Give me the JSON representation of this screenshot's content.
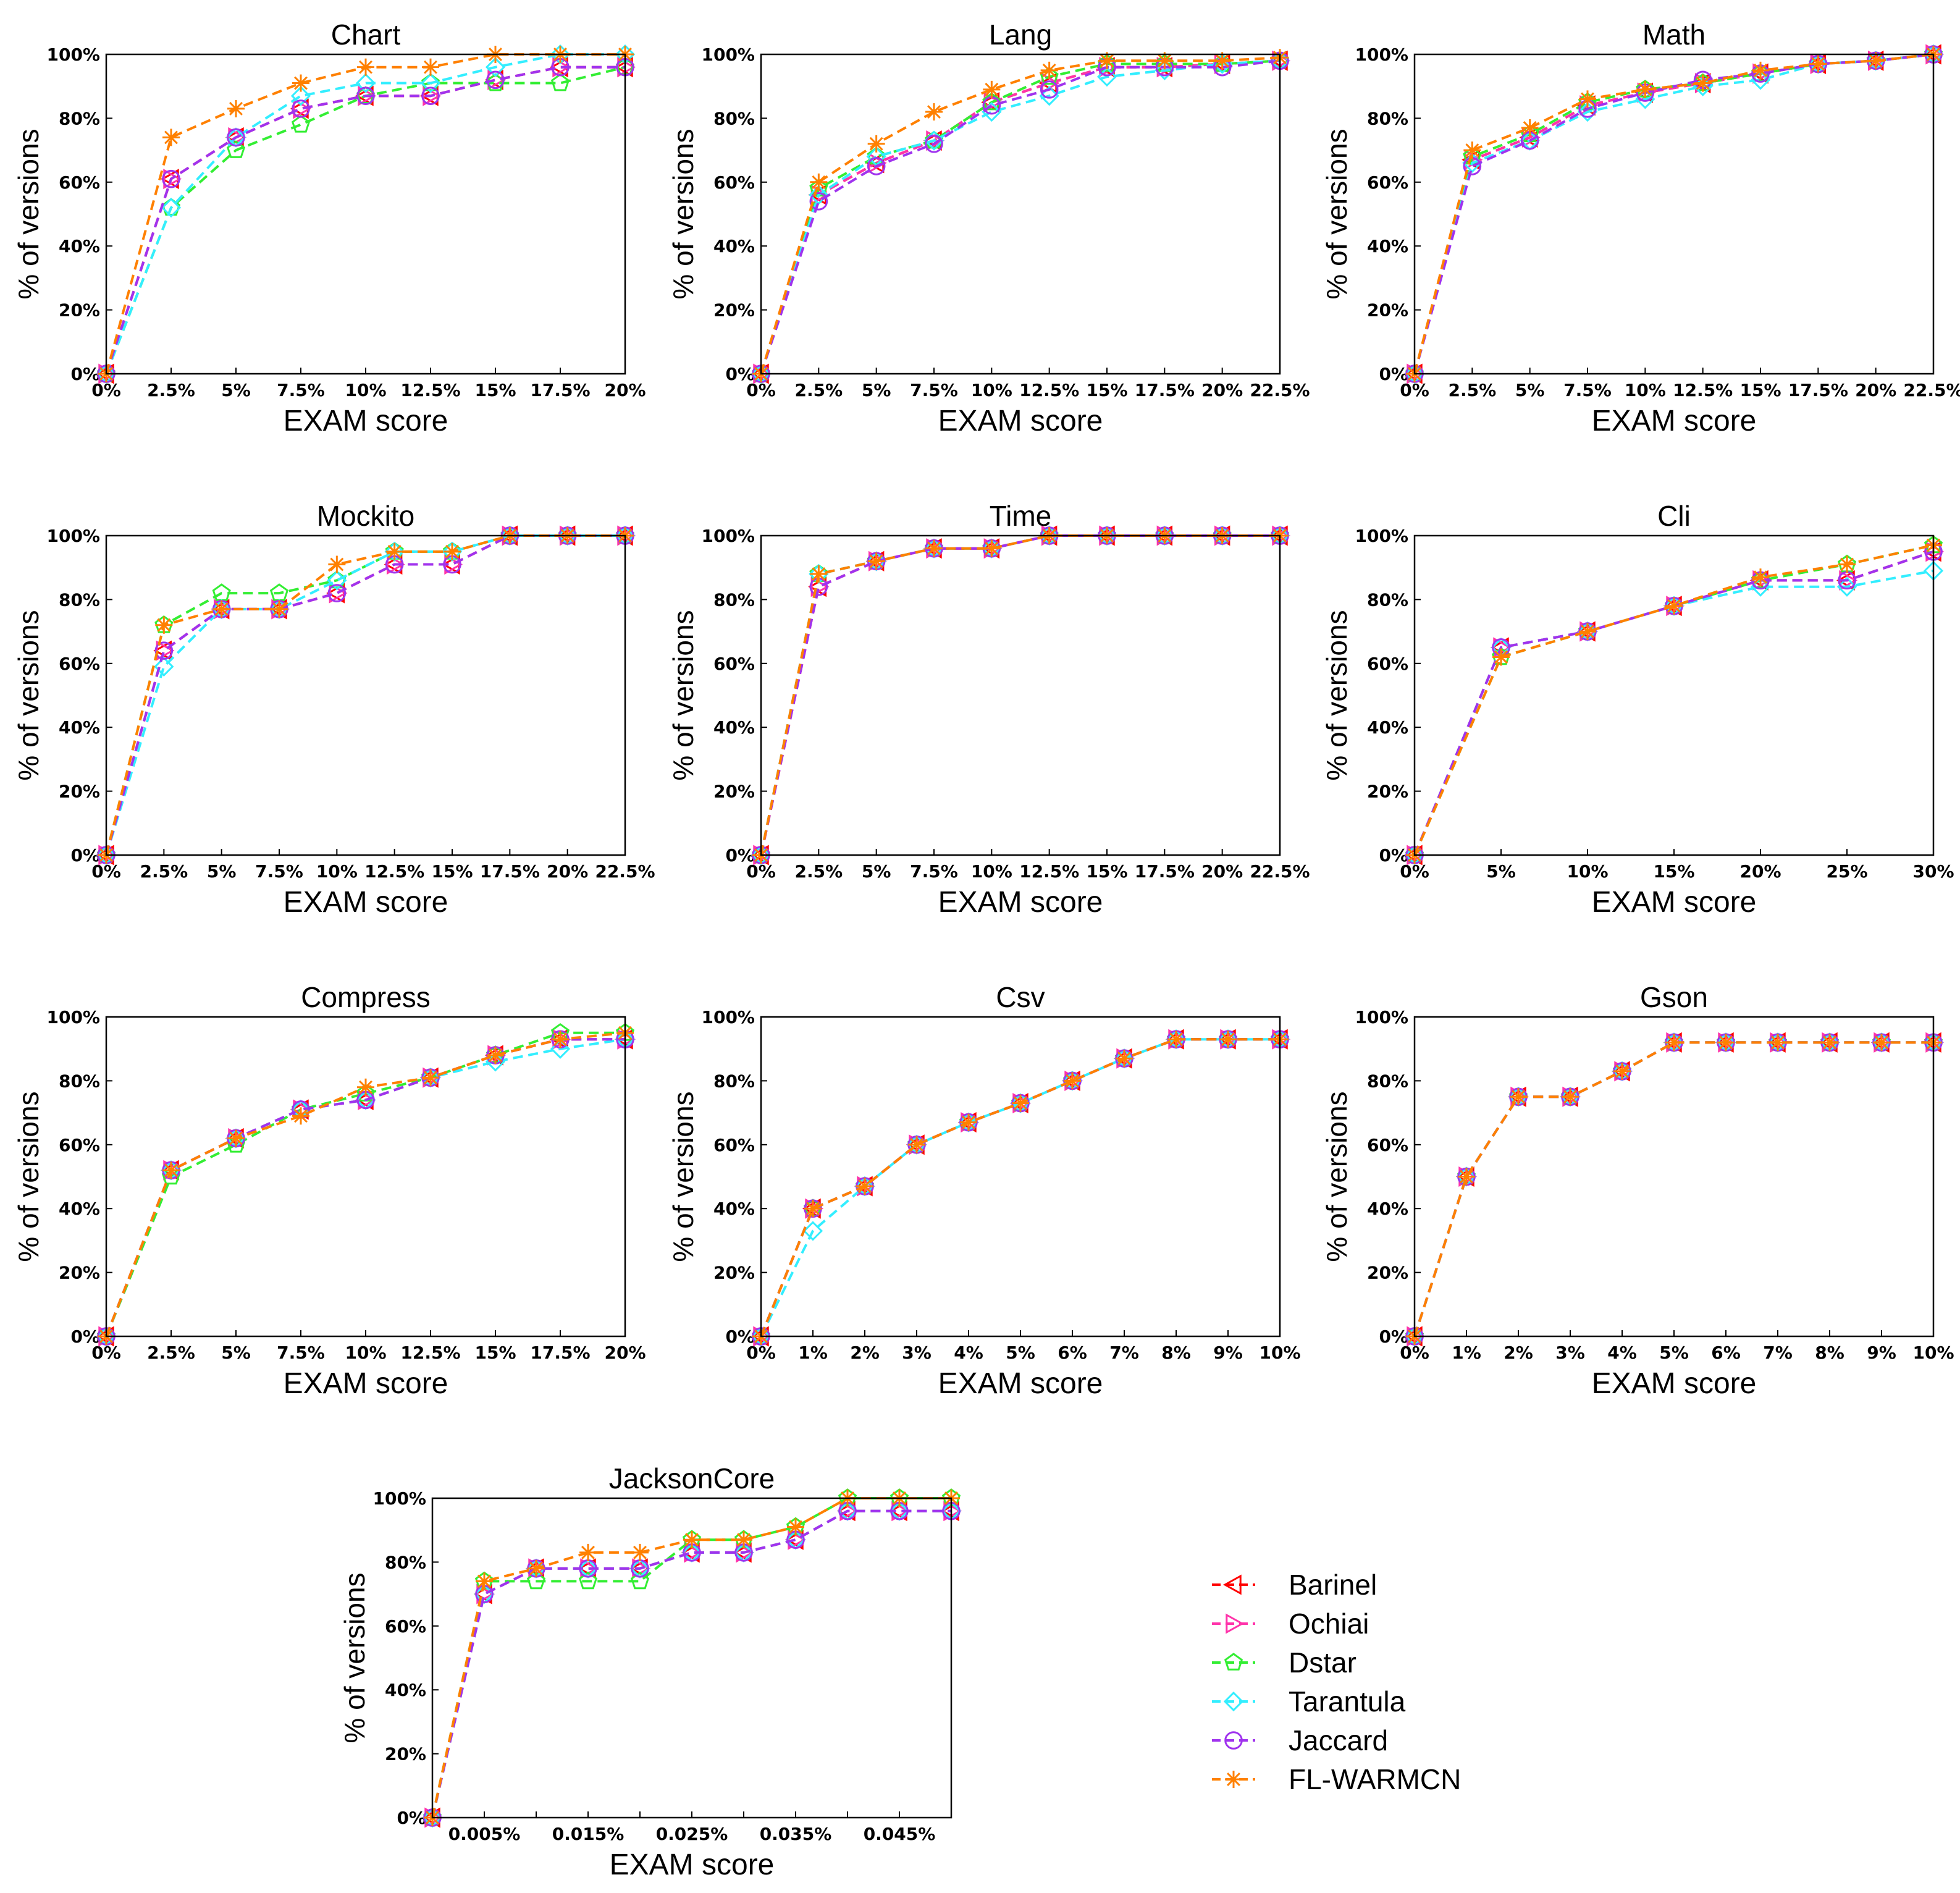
{
  "chart_data": [
    {
      "type": "line",
      "title": "Chart",
      "xlabel": "EXAM score",
      "ylabel": "% of versions",
      "x_ticks": [
        "0%",
        "2.5%",
        "5%",
        "7.5%",
        "10%",
        "12.5%",
        "15%",
        "17.5%",
        "20%"
      ],
      "y_ticks": [
        "0%",
        "20%",
        "40%",
        "60%",
        "80%",
        "100%"
      ],
      "ylim": [
        0,
        100
      ],
      "series": [
        {
          "name": "Barinel",
          "values": [
            0,
            61,
            74,
            83,
            87,
            87,
            92,
            96,
            96
          ]
        },
        {
          "name": "Ochiai",
          "values": [
            0,
            61,
            74,
            83,
            87,
            87,
            92,
            96,
            96
          ]
        },
        {
          "name": "Dstar",
          "values": [
            0,
            52,
            70,
            78,
            87,
            91,
            91,
            91,
            96
          ]
        },
        {
          "name": "Tarantula",
          "values": [
            0,
            52,
            74,
            87,
            91,
            91,
            96,
            100,
            100
          ]
        },
        {
          "name": "Jaccard",
          "values": [
            0,
            61,
            74,
            83,
            87,
            87,
            92,
            96,
            96
          ]
        },
        {
          "name": "FL-WARMCN",
          "values": [
            0,
            74,
            83,
            91,
            96,
            96,
            100,
            100,
            100
          ]
        }
      ]
    },
    {
      "type": "line",
      "title": "Lang",
      "xlabel": "EXAM score",
      "ylabel": "% of versions",
      "x_ticks": [
        "0%",
        "2.5%",
        "5%",
        "7.5%",
        "10%",
        "12.5%",
        "15%",
        "17.5%",
        "20%",
        "22.5%"
      ],
      "y_ticks": [
        "0%",
        "20%",
        "40%",
        "60%",
        "80%",
        "100%"
      ],
      "ylim": [
        0,
        100
      ],
      "series": [
        {
          "name": "Barinel",
          "values": [
            0,
            56,
            66,
            73,
            85,
            91,
            96,
            96,
            97,
            98
          ]
        },
        {
          "name": "Ochiai",
          "values": [
            0,
            56,
            66,
            73,
            85,
            91,
            96,
            96,
            97,
            98
          ]
        },
        {
          "name": "Dstar",
          "values": [
            0,
            58,
            68,
            73,
            85,
            93,
            97,
            97,
            97,
            98
          ]
        },
        {
          "name": "Tarantula",
          "values": [
            0,
            56,
            68,
            73,
            82,
            87,
            93,
            95,
            97,
            98
          ]
        },
        {
          "name": "Jaccard",
          "values": [
            0,
            54,
            65,
            72,
            84,
            89,
            96,
            96,
            96,
            98
          ]
        },
        {
          "name": "FL-WARMCN",
          "values": [
            0,
            60,
            72,
            82,
            89,
            95,
            98,
            98,
            98,
            99
          ]
        }
      ]
    },
    {
      "type": "line",
      "title": "Math",
      "xlabel": "EXAM score",
      "ylabel": "% of versions",
      "x_ticks": [
        "0%",
        "2.5%",
        "5%",
        "7.5%",
        "10%",
        "12.5%",
        "15%",
        "17.5%",
        "20%",
        "22.5%"
      ],
      "y_ticks": [
        "0%",
        "20%",
        "40%",
        "60%",
        "80%",
        "100%"
      ],
      "ylim": [
        0,
        100
      ],
      "series": [
        {
          "name": "Barinel",
          "values": [
            0,
            67,
            74,
            84,
            88,
            91,
            94,
            97,
            98,
            100
          ]
        },
        {
          "name": "Ochiai",
          "values": [
            0,
            67,
            74,
            84,
            88,
            91,
            94,
            97,
            98,
            100
          ]
        },
        {
          "name": "Dstar",
          "values": [
            0,
            68,
            75,
            85,
            89,
            91,
            94,
            97,
            98,
            100
          ]
        },
        {
          "name": "Tarantula",
          "values": [
            0,
            66,
            73,
            82,
            86,
            90,
            92,
            97,
            98,
            100
          ]
        },
        {
          "name": "Jaccard",
          "values": [
            0,
            65,
            73,
            83,
            88,
            92,
            94,
            97,
            98,
            100
          ]
        },
        {
          "name": "FL-WARMCN",
          "values": [
            0,
            70,
            77,
            86,
            89,
            91,
            95,
            97,
            98,
            100
          ]
        }
      ]
    },
    {
      "type": "line",
      "title": "Mockito",
      "xlabel": "EXAM score",
      "ylabel": "% of versions",
      "x_ticks": [
        "0%",
        "2.5%",
        "5%",
        "7.5%",
        "10%",
        "12.5%",
        "15%",
        "17.5%",
        "20%",
        "22.5%"
      ],
      "y_ticks": [
        "0%",
        "20%",
        "40%",
        "60%",
        "80%",
        "100%"
      ],
      "ylim": [
        0,
        100
      ],
      "series": [
        {
          "name": "Barinel",
          "values": [
            0,
            64,
            77,
            77,
            82,
            91,
            91,
            100,
            100,
            100
          ]
        },
        {
          "name": "Ochiai",
          "values": [
            0,
            64,
            77,
            77,
            82,
            91,
            91,
            100,
            100,
            100
          ]
        },
        {
          "name": "Dstar",
          "values": [
            0,
            72,
            82,
            82,
            86,
            95,
            95,
            100,
            100,
            100
          ]
        },
        {
          "name": "Tarantula",
          "values": [
            0,
            59,
            77,
            77,
            86,
            95,
            95,
            100,
            100,
            100
          ]
        },
        {
          "name": "Jaccard",
          "values": [
            0,
            64,
            77,
            77,
            82,
            91,
            91,
            100,
            100,
            100
          ]
        },
        {
          "name": "FL-WARMCN",
          "values": [
            0,
            72,
            77,
            77,
            91,
            95,
            95,
            100,
            100,
            100
          ]
        }
      ]
    },
    {
      "type": "line",
      "title": "Time",
      "xlabel": "EXAM score",
      "ylabel": "% of versions",
      "x_ticks": [
        "0%",
        "2.5%",
        "5%",
        "7.5%",
        "10%",
        "12.5%",
        "15%",
        "17.5%",
        "20%",
        "22.5%"
      ],
      "y_ticks": [
        "0%",
        "20%",
        "40%",
        "60%",
        "80%",
        "100%"
      ],
      "ylim": [
        0,
        100
      ],
      "series": [
        {
          "name": "Barinel",
          "values": [
            0,
            84,
            92,
            96,
            96,
            100,
            100,
            100,
            100,
            100
          ]
        },
        {
          "name": "Ochiai",
          "values": [
            0,
            84,
            92,
            96,
            96,
            100,
            100,
            100,
            100,
            100
          ]
        },
        {
          "name": "Dstar",
          "values": [
            0,
            88,
            92,
            96,
            96,
            100,
            100,
            100,
            100,
            100
          ]
        },
        {
          "name": "Tarantula",
          "values": [
            0,
            88,
            92,
            96,
            96,
            100,
            100,
            100,
            100,
            100
          ]
        },
        {
          "name": "Jaccard",
          "values": [
            0,
            84,
            92,
            96,
            96,
            100,
            100,
            100,
            100,
            100
          ]
        },
        {
          "name": "FL-WARMCN",
          "values": [
            0,
            88,
            92,
            96,
            96,
            100,
            100,
            100,
            100,
            100
          ]
        }
      ]
    },
    {
      "type": "line",
      "title": "Cli",
      "xlabel": "EXAM score",
      "ylabel": "% of versions",
      "x_ticks": [
        "0%",
        "5%",
        "10%",
        "15%",
        "20%",
        "25%",
        "30%"
      ],
      "y_ticks": [
        "0%",
        "20%",
        "40%",
        "60%",
        "80%",
        "100%"
      ],
      "ylim": [
        0,
        100
      ],
      "series": [
        {
          "name": "Barinel",
          "values": [
            0,
            65,
            70,
            78,
            86,
            86,
            95
          ]
        },
        {
          "name": "Ochiai",
          "values": [
            0,
            65,
            70,
            78,
            86,
            86,
            95
          ]
        },
        {
          "name": "Dstar",
          "values": [
            0,
            62,
            70,
            78,
            86,
            91,
            97
          ]
        },
        {
          "name": "Tarantula",
          "values": [
            0,
            65,
            70,
            78,
            84,
            84,
            89
          ]
        },
        {
          "name": "Jaccard",
          "values": [
            0,
            65,
            70,
            78,
            86,
            86,
            95
          ]
        },
        {
          "name": "FL-WARMCN",
          "values": [
            0,
            62,
            70,
            78,
            87,
            91,
            97
          ]
        }
      ]
    },
    {
      "type": "line",
      "title": "Compress",
      "xlabel": "EXAM score",
      "ylabel": "% of versions",
      "x_ticks": [
        "0%",
        "2.5%",
        "5%",
        "7.5%",
        "10%",
        "12.5%",
        "15%",
        "17.5%",
        "20%"
      ],
      "y_ticks": [
        "0%",
        "20%",
        "40%",
        "60%",
        "80%",
        "100%"
      ],
      "ylim": [
        0,
        100
      ],
      "series": [
        {
          "name": "Barinel",
          "values": [
            0,
            52,
            62,
            71,
            74,
            81,
            88,
            93,
            93
          ]
        },
        {
          "name": "Ochiai",
          "values": [
            0,
            52,
            62,
            71,
            74,
            81,
            88,
            93,
            93
          ]
        },
        {
          "name": "Dstar",
          "values": [
            0,
            50,
            60,
            71,
            76,
            81,
            88,
            95,
            95
          ]
        },
        {
          "name": "Tarantula",
          "values": [
            0,
            52,
            62,
            71,
            74,
            81,
            86,
            90,
            93
          ]
        },
        {
          "name": "Jaccard",
          "values": [
            0,
            52,
            62,
            71,
            74,
            81,
            88,
            93,
            93
          ]
        },
        {
          "name": "FL-WARMCN",
          "values": [
            0,
            52,
            62,
            69,
            78,
            81,
            88,
            93,
            95
          ]
        }
      ]
    },
    {
      "type": "line",
      "title": "Csv",
      "xlabel": "EXAM score",
      "ylabel": "% of versions",
      "x_ticks": [
        "0%",
        "1%",
        "2%",
        "3%",
        "4%",
        "5%",
        "6%",
        "7%",
        "8%",
        "9%",
        "10%"
      ],
      "y_ticks": [
        "0%",
        "20%",
        "40%",
        "60%",
        "80%",
        "100%"
      ],
      "ylim": [
        0,
        100
      ],
      "series": [
        {
          "name": "Barinel",
          "values": [
            0,
            40,
            47,
            60,
            67,
            73,
            80,
            87,
            93,
            93,
            93
          ]
        },
        {
          "name": "Ochiai",
          "values": [
            0,
            40,
            47,
            60,
            67,
            73,
            80,
            87,
            93,
            93,
            93
          ]
        },
        {
          "name": "Dstar",
          "values": [
            0,
            40,
            47,
            60,
            67,
            73,
            80,
            87,
            93,
            93,
            93
          ]
        },
        {
          "name": "Tarantula",
          "values": [
            0,
            33,
            47,
            60,
            67,
            73,
            80,
            87,
            93,
            93,
            93
          ]
        },
        {
          "name": "Jaccard",
          "values": [
            0,
            40,
            47,
            60,
            67,
            73,
            80,
            87,
            93,
            93,
            93
          ]
        },
        {
          "name": "FL-WARMCN",
          "values": [
            0,
            40,
            47,
            60,
            67,
            73,
            80,
            87,
            93,
            93,
            93
          ]
        }
      ]
    },
    {
      "type": "line",
      "title": "Gson",
      "xlabel": "EXAM score",
      "ylabel": "% of versions",
      "x_ticks": [
        "0%",
        "1%",
        "2%",
        "3%",
        "4%",
        "5%",
        "6%",
        "7%",
        "8%",
        "9%",
        "10%"
      ],
      "y_ticks": [
        "0%",
        "20%",
        "40%",
        "60%",
        "80%",
        "100%"
      ],
      "ylim": [
        0,
        100
      ],
      "series": [
        {
          "name": "Barinel",
          "values": [
            0,
            50,
            75,
            75,
            83,
            92,
            92,
            92,
            92,
            92,
            92
          ]
        },
        {
          "name": "Ochiai",
          "values": [
            0,
            50,
            75,
            75,
            83,
            92,
            92,
            92,
            92,
            92,
            92
          ]
        },
        {
          "name": "Dstar",
          "values": [
            0,
            50,
            75,
            75,
            83,
            92,
            92,
            92,
            92,
            92,
            92
          ]
        },
        {
          "name": "Tarantula",
          "values": [
            0,
            50,
            75,
            75,
            83,
            92,
            92,
            92,
            92,
            92,
            92
          ]
        },
        {
          "name": "Jaccard",
          "values": [
            0,
            50,
            75,
            75,
            83,
            92,
            92,
            92,
            92,
            92,
            92
          ]
        },
        {
          "name": "FL-WARMCN",
          "values": [
            0,
            50,
            75,
            75,
            83,
            92,
            92,
            92,
            92,
            92,
            92
          ]
        }
      ]
    },
    {
      "type": "line",
      "title": "JacksonCore",
      "xlabel": "EXAM score",
      "ylabel": "% of versions",
      "x_ticks": [
        "",
        "0.005%",
        "",
        "0.015%",
        "",
        "0.025%",
        "",
        "0.035%",
        "",
        "0.045%",
        ""
      ],
      "y_ticks": [
        "0%",
        "20%",
        "40%",
        "60%",
        "80%",
        "100%"
      ],
      "ylim": [
        0,
        100
      ],
      "series": [
        {
          "name": "Barinel",
          "values": [
            0,
            70,
            78,
            78,
            78,
            83,
            83,
            87,
            96,
            96,
            96
          ]
        },
        {
          "name": "Ochiai",
          "values": [
            0,
            70,
            78,
            78,
            78,
            83,
            83,
            87,
            96,
            96,
            96
          ]
        },
        {
          "name": "Dstar",
          "values": [
            0,
            74,
            74,
            74,
            74,
            87,
            87,
            91,
            100,
            100,
            100
          ]
        },
        {
          "name": "Tarantula",
          "values": [
            0,
            70,
            78,
            78,
            78,
            83,
            83,
            87,
            96,
            96,
            96
          ]
        },
        {
          "name": "Jaccard",
          "values": [
            0,
            70,
            78,
            78,
            78,
            83,
            83,
            87,
            96,
            96,
            96
          ]
        },
        {
          "name": "FL-WARMCN",
          "values": [
            0,
            74,
            78,
            83,
            83,
            87,
            87,
            91,
            100,
            100,
            100
          ]
        }
      ]
    }
  ],
  "legend": [
    {
      "name": "Barinel",
      "color": "#ff0000",
      "marker": "triangle-left"
    },
    {
      "name": "Ochiai",
      "color": "#ff33aa",
      "marker": "triangle-right"
    },
    {
      "name": "Dstar",
      "color": "#33ee33",
      "marker": "pentagon"
    },
    {
      "name": "Tarantula",
      "color": "#33eeff",
      "marker": "diamond"
    },
    {
      "name": "Jaccard",
      "color": "#a033ee",
      "marker": "circle"
    },
    {
      "name": "FL-WARMCN",
      "color": "#ff8000",
      "marker": "asterisk"
    }
  ]
}
